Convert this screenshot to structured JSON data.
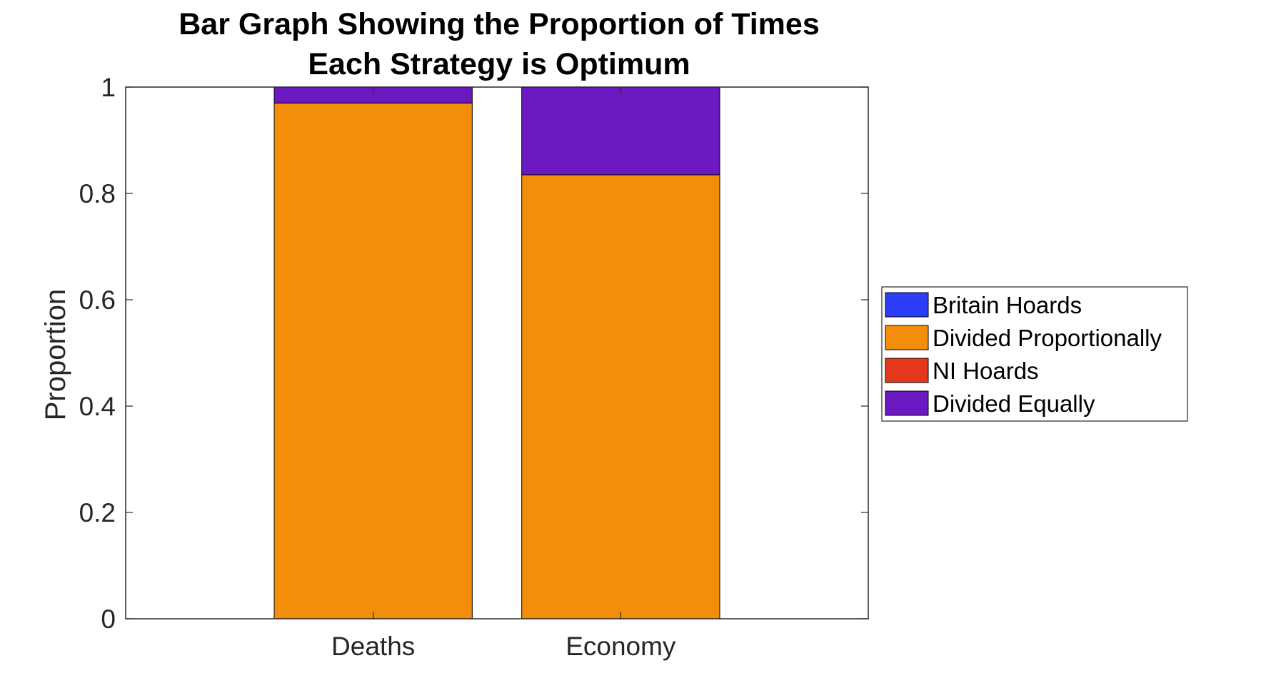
{
  "chart_data": {
    "type": "bar",
    "stacked": true,
    "title": [
      "Bar Graph Showing the Proportion of Times",
      "Each Strategy is Optimum"
    ],
    "xlabel": "",
    "ylabel": "Proportion",
    "categories": [
      "Deaths",
      "Economy"
    ],
    "xlim": [
      0,
      3
    ],
    "ylim": [
      0,
      1
    ],
    "yticks": [
      0,
      0.2,
      0.4,
      0.6,
      0.8,
      1
    ],
    "ytick_labels": [
      "0",
      "0.2",
      "0.4",
      "0.6",
      "0.8",
      "1"
    ],
    "grid": false,
    "legend_position": "right",
    "series": [
      {
        "name": "Britain Hoards",
        "values": [
          0,
          0
        ],
        "color": "#2b3df7"
      },
      {
        "name": "Divided Proportionally",
        "values": [
          0.97,
          0.835
        ],
        "color": "#f28e0b"
      },
      {
        "name": "NI Hoards",
        "values": [
          0,
          0
        ],
        "color": "#e3381b"
      },
      {
        "name": "Divided Equally",
        "values": [
          0.03,
          0.165
        ],
        "color": "#6b18c0"
      }
    ]
  }
}
